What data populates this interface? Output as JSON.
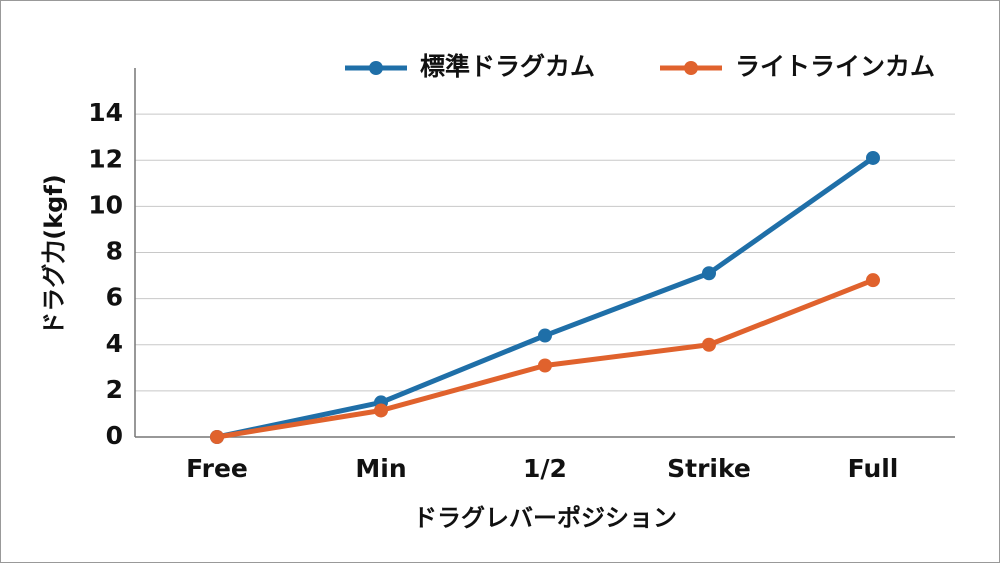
{
  "chart_data": {
    "type": "line",
    "categories": [
      "Free",
      "Min",
      "1/2",
      "Strike",
      "Full"
    ],
    "series": [
      {
        "name": "標準ドラグカム",
        "color": "#1f6fa8",
        "values": [
          0,
          1.5,
          4.4,
          7.1,
          12.1
        ]
      },
      {
        "name": "ライトラインカム",
        "color": "#e0622d",
        "values": [
          0,
          1.15,
          3.1,
          4.0,
          6.8
        ]
      }
    ],
    "x_label": "ドラグレバーポジション",
    "y_label": "ドラグ力(kgf)",
    "ylim": [
      0,
      16
    ],
    "yticks": [
      0,
      2,
      4,
      6,
      8,
      10,
      12,
      14
    ],
    "grid": true
  }
}
